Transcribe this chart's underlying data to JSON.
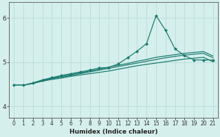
{
  "xlabel": "Humidex (Indice chaleur)",
  "xlim": [
    -0.5,
    21.5
  ],
  "ylim": [
    3.75,
    6.35
  ],
  "yticks": [
    4,
    5,
    6
  ],
  "xticks": [
    0,
    1,
    2,
    3,
    4,
    5,
    6,
    7,
    8,
    9,
    10,
    11,
    12,
    13,
    14,
    15,
    16,
    17,
    18,
    19,
    20,
    21
  ],
  "bg_color": "#d5efec",
  "grid_color": "#b8ddd9",
  "line_color": "#1a7a6e",
  "lines": [
    {
      "x": [
        0,
        1,
        2,
        3,
        4,
        5,
        6,
        7,
        8,
        9,
        10,
        11,
        12,
        13,
        14,
        15,
        16,
        17,
        18,
        19,
        20,
        21
      ],
      "y": [
        4.48,
        4.48,
        4.52,
        4.57,
        4.61,
        4.64,
        4.68,
        4.71,
        4.74,
        4.77,
        4.8,
        4.84,
        4.88,
        4.92,
        4.95,
        4.98,
        5.01,
        5.04,
        5.07,
        5.09,
        5.11,
        5.01
      ],
      "marker": null,
      "lw": 0.9
    },
    {
      "x": [
        0,
        1,
        2,
        3,
        4,
        5,
        6,
        7,
        8,
        9,
        10,
        11,
        12,
        13,
        14,
        15,
        16,
        17,
        18,
        19,
        20,
        21
      ],
      "y": [
        4.48,
        4.48,
        4.52,
        4.58,
        4.63,
        4.66,
        4.7,
        4.74,
        4.78,
        4.82,
        4.86,
        4.9,
        4.94,
        4.98,
        5.02,
        5.06,
        5.1,
        5.13,
        5.16,
        5.18,
        5.2,
        5.1
      ],
      "marker": null,
      "lw": 0.9
    },
    {
      "x": [
        0,
        1,
        2,
        3,
        4,
        5,
        6,
        7,
        8,
        9,
        10,
        11,
        12,
        13,
        14,
        15,
        16,
        17,
        18,
        19,
        20,
        21
      ],
      "y": [
        4.48,
        4.48,
        4.53,
        4.59,
        4.64,
        4.68,
        4.72,
        4.76,
        4.8,
        4.84,
        4.89,
        4.93,
        4.97,
        5.02,
        5.06,
        5.11,
        5.14,
        5.17,
        5.2,
        5.22,
        5.24,
        5.14
      ],
      "marker": null,
      "lw": 0.9
    },
    {
      "x": [
        0,
        1,
        2,
        3,
        4,
        5,
        6,
        7,
        8,
        9,
        10,
        11,
        12,
        13,
        14,
        15,
        16,
        17,
        18,
        19,
        20,
        21
      ],
      "y": [
        4.48,
        4.48,
        4.53,
        4.6,
        4.65,
        4.7,
        4.74,
        4.78,
        4.82,
        4.87,
        4.88,
        4.96,
        5.1,
        5.25,
        5.42,
        6.05,
        5.72,
        5.3,
        5.15,
        5.05,
        5.05,
        5.05
      ],
      "marker": "D",
      "ms": 2.0,
      "lw": 0.9
    }
  ]
}
